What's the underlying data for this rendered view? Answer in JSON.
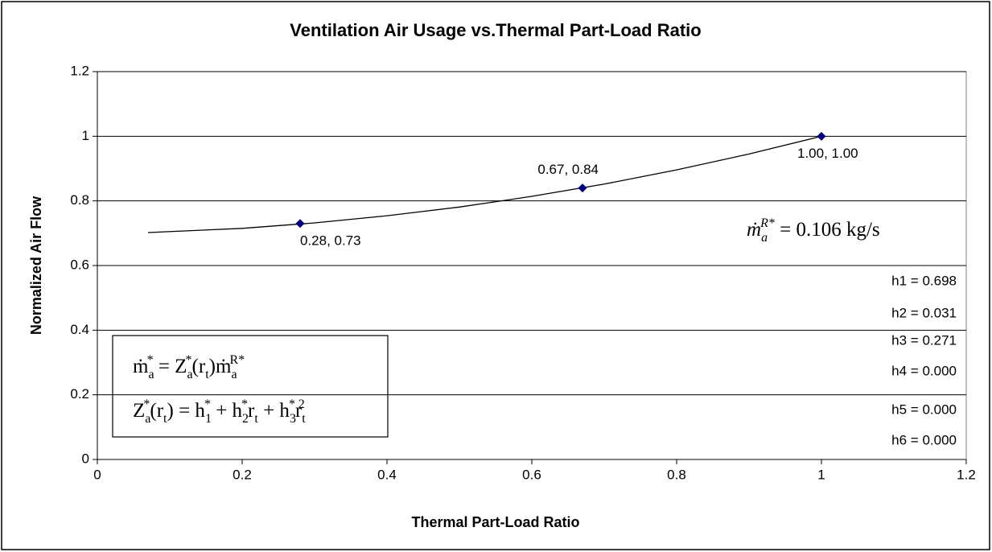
{
  "chart_data": {
    "type": "scatter",
    "title": "Ventilation Air Usage vs.Thermal Part-Load Ratio",
    "x_label": "Thermal Part-Load Ratio",
    "y_label": "Normalized Air Flow",
    "xlim": [
      0,
      1.2
    ],
    "ylim": [
      0,
      1.2
    ],
    "xticks": [
      0,
      0.2,
      0.4,
      0.6,
      0.8,
      1,
      1.2
    ],
    "yticks": [
      0,
      0.2,
      0.4,
      0.6,
      0.8,
      1,
      1.2
    ],
    "grid": true,
    "series": [
      {
        "kind": "fit",
        "color": "#000000",
        "x": [
          0.07,
          0.2,
          0.3,
          0.4,
          0.5,
          0.6,
          0.7,
          0.8,
          0.9,
          1.0
        ],
        "values": [
          0.702,
          0.715,
          0.732,
          0.754,
          0.781,
          0.814,
          0.852,
          0.896,
          0.945,
          1.0
        ]
      },
      {
        "kind": "points",
        "color": "#000080",
        "x": [
          0.28,
          0.67,
          1.0
        ],
        "values": [
          0.73,
          0.84,
          1.0
        ],
        "value_labels": [
          "0.28, 0.73",
          "0.67, 0.84",
          "1.00, 1.00"
        ]
      }
    ],
    "coefficients": [
      "h1 = 0.698",
      "h2 = 0.031",
      "h3 = 0.271",
      "h4 = 0.000",
      "h5 = 0.000",
      "h6 = 0.000"
    ],
    "rated_flow": [
      {
        "text": "ṁ",
        "style": "normal"
      },
      {
        "text": "a",
        "style": "sub"
      },
      {
        "text": "R*",
        "style": "sup"
      },
      {
        "text": " = 0.106 kg/s",
        "style": "upright"
      }
    ],
    "equations": [
      [
        {
          "text": "ṁ",
          "style": "normal"
        },
        {
          "text": "a",
          "style": "sub"
        },
        {
          "text": "*",
          "style": "sup"
        },
        {
          "text": " = Z",
          "style": "normal"
        },
        {
          "text": "a",
          "style": "sub"
        },
        {
          "text": "*",
          "style": "sup"
        },
        {
          "text": "(r",
          "style": "normal"
        },
        {
          "text": "t",
          "style": "sub"
        },
        {
          "text": ")ṁ",
          "style": "normal"
        },
        {
          "text": "a",
          "style": "sub"
        },
        {
          "text": "R*",
          "style": "sup"
        }
      ],
      [
        {
          "text": "Z",
          "style": "normal"
        },
        {
          "text": "a",
          "style": "sub"
        },
        {
          "text": "*",
          "style": "sup"
        },
        {
          "text": "(r",
          "style": "normal"
        },
        {
          "text": "t",
          "style": "sub"
        },
        {
          "text": ") = h",
          "style": "normal"
        },
        {
          "text": "1",
          "style": "sub"
        },
        {
          "text": "*",
          "style": "sup"
        },
        {
          "text": " + h",
          "style": "normal"
        },
        {
          "text": "2",
          "style": "sub"
        },
        {
          "text": "*",
          "style": "sup"
        },
        {
          "text": "r",
          "style": "normal"
        },
        {
          "text": "t",
          "style": "sub"
        },
        {
          "text": " + h",
          "style": "normal"
        },
        {
          "text": "3",
          "style": "sub"
        },
        {
          "text": "*",
          "style": "sup"
        },
        {
          "text": "r",
          "style": "normal"
        },
        {
          "text": "t",
          "style": "sub"
        },
        {
          "text": "2",
          "style": "sup"
        }
      ]
    ]
  }
}
